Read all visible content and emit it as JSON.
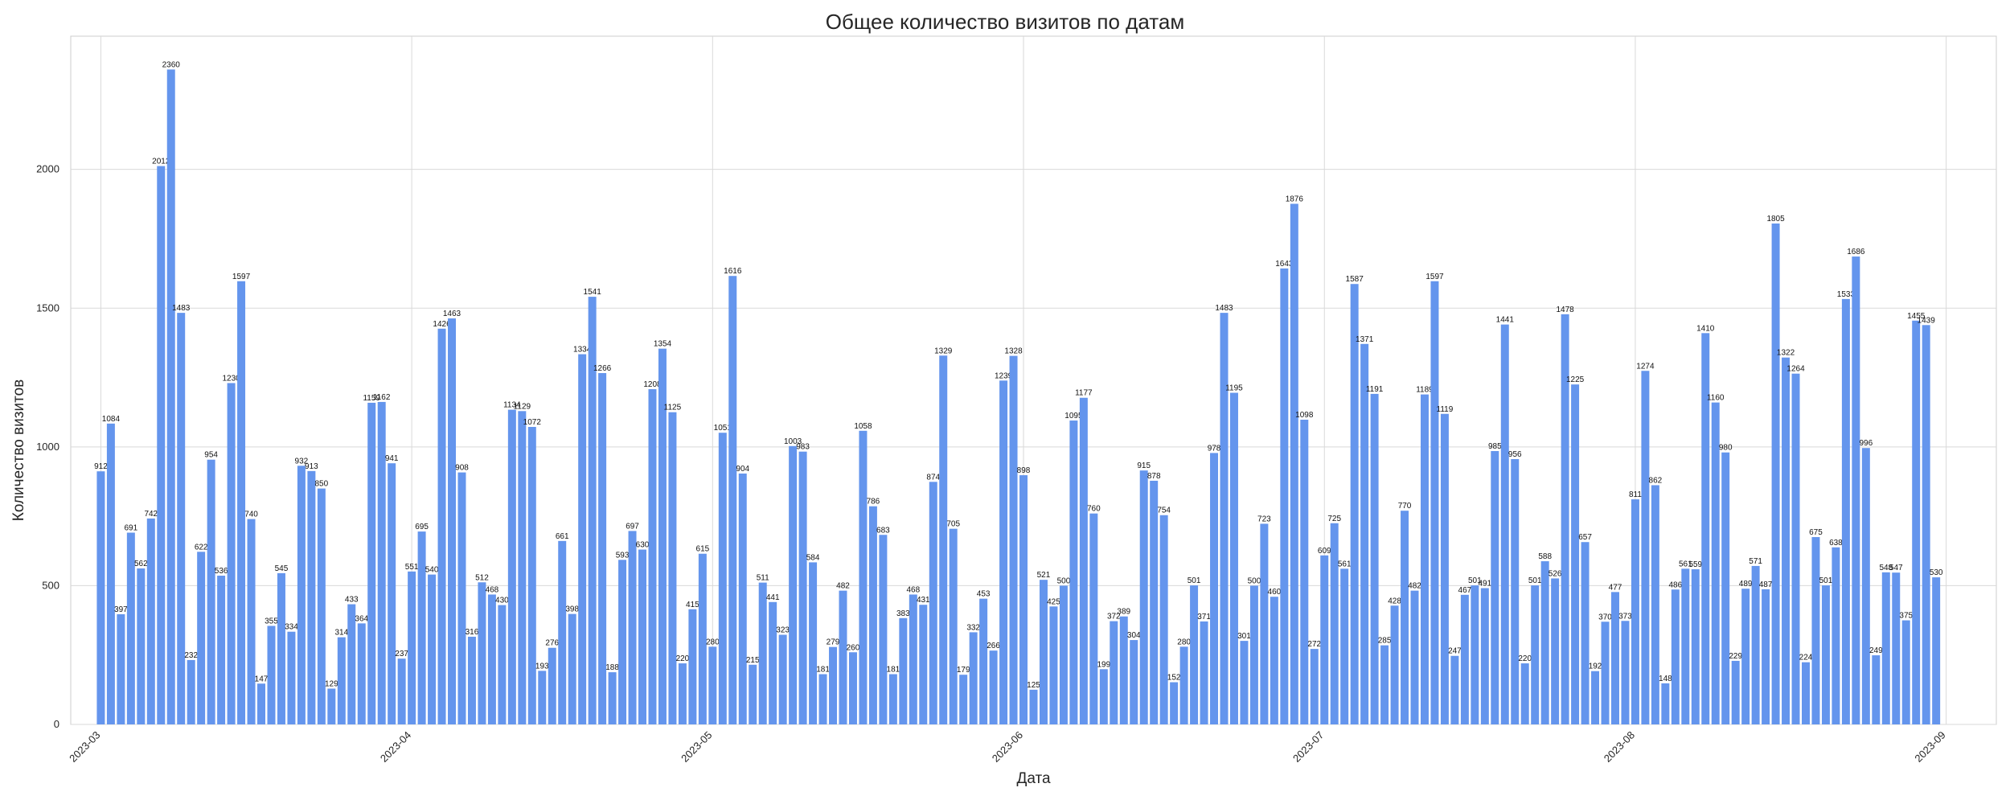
{
  "chart_data": {
    "type": "bar",
    "title": "Общее количество визитов по датам",
    "xlabel": "Дата",
    "ylabel": "Количество визитов",
    "ylim": [
      0,
      2480
    ],
    "xlim": [
      "2023-02-26",
      "2023-09-06"
    ],
    "yticks": [
      0,
      500,
      1000,
      1500,
      2000
    ],
    "xticks": [
      "2023-03",
      "2023-04",
      "2023-05",
      "2023-06",
      "2023-07",
      "2023-08",
      "2023-09"
    ],
    "xtick_dates": [
      "2023-03-01",
      "2023-04-01",
      "2023-05-01",
      "2023-06-01",
      "2023-07-01",
      "2023-08-01",
      "2023-09-01"
    ],
    "grid": true,
    "bar_color": "#6495ED",
    "grid_color": "#d9d9d9",
    "start_date": "2023-03-01",
    "values": [
      912,
      1084,
      397,
      691,
      562,
      742,
      2012,
      2360,
      1483,
      232,
      622,
      954,
      536,
      1230,
      1597,
      740,
      147,
      355,
      545,
      334,
      932,
      913,
      850,
      129,
      314,
      433,
      364,
      1159,
      1162,
      941,
      237,
      551,
      695,
      540,
      1426,
      1463,
      908,
      316,
      512,
      468,
      430,
      1134,
      1129,
      1072,
      193,
      276,
      661,
      398,
      1334,
      1541,
      1266,
      188,
      593,
      697,
      630,
      1208,
      1354,
      1125,
      220,
      415,
      615,
      280,
      1051,
      1616,
      904,
      215,
      511,
      441,
      323,
      1003,
      983,
      584,
      181,
      279,
      482,
      260,
      1058,
      786,
      683,
      181,
      383,
      468,
      431,
      874,
      1329,
      705,
      179,
      332,
      453,
      266,
      1239,
      1328,
      898,
      125,
      521,
      425,
      500,
      1095,
      1177,
      760,
      199,
      372,
      389,
      304,
      915,
      878,
      754,
      152,
      280,
      501,
      371,
      978,
      1483,
      1195,
      301,
      500,
      723,
      460,
      1643,
      1876,
      1098,
      272,
      609,
      725,
      561,
      1587,
      1371,
      1191,
      285,
      428,
      770,
      482,
      1189,
      1597,
      1119,
      247,
      467,
      501,
      491,
      985,
      1441,
      956,
      220,
      501,
      588,
      526,
      1478,
      1225,
      657,
      192,
      370,
      477,
      373,
      811,
      1274,
      862,
      148,
      486,
      561,
      559,
      1410,
      1160,
      980,
      229,
      489,
      571,
      487,
      1805,
      1322,
      1264,
      224,
      675,
      501,
      638,
      1533,
      1686,
      996,
      249,
      548,
      547,
      375,
      1455,
      1439,
      530
    ]
  }
}
